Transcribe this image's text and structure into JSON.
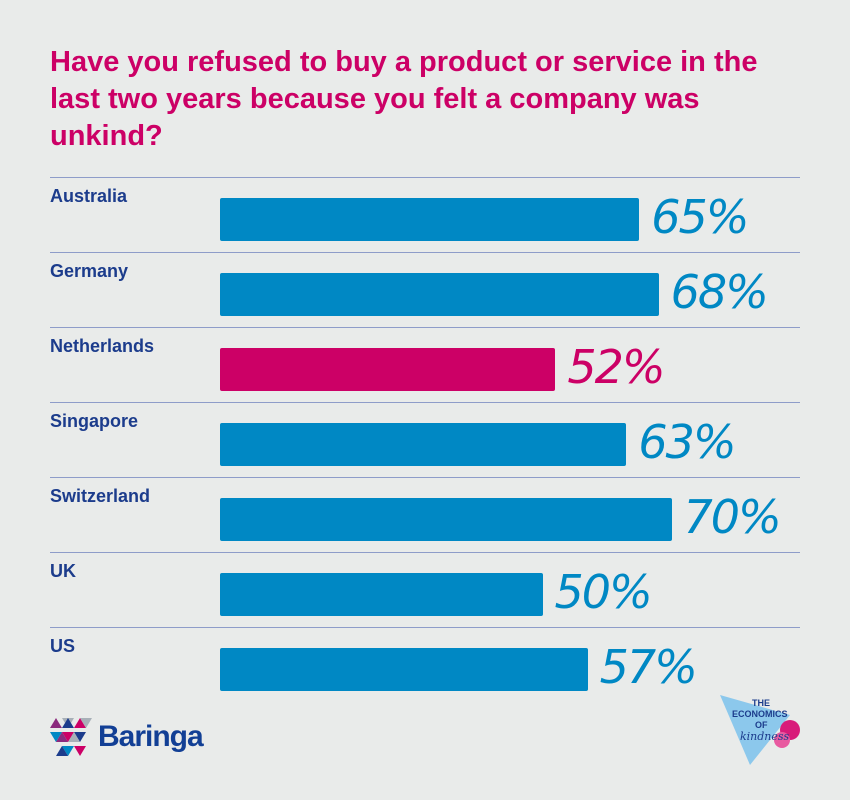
{
  "chart_data": {
    "type": "bar",
    "orientation": "horizontal",
    "title": "Have you refused to buy a product or service in the last two years because you felt a company was unkind?",
    "categories": [
      "Australia",
      "Germany",
      "Netherlands",
      "Singapore",
      "Switzerland",
      "UK",
      "US"
    ],
    "values": [
      65,
      68,
      52,
      63,
      70,
      50,
      57
    ],
    "value_labels": [
      "65%",
      "68%",
      "52%",
      "63%",
      "70%",
      "50%",
      "57%"
    ],
    "colors": [
      "#0088c4",
      "#0088c4",
      "#cc0066",
      "#0088c4",
      "#0088c4",
      "#0088c4",
      "#0088c4"
    ],
    "xlim": [
      0,
      100
    ],
    "grid": false
  },
  "footer": {
    "brand": "Baringa",
    "campaign_logo": "THE ECONOMICS OF kindness"
  }
}
